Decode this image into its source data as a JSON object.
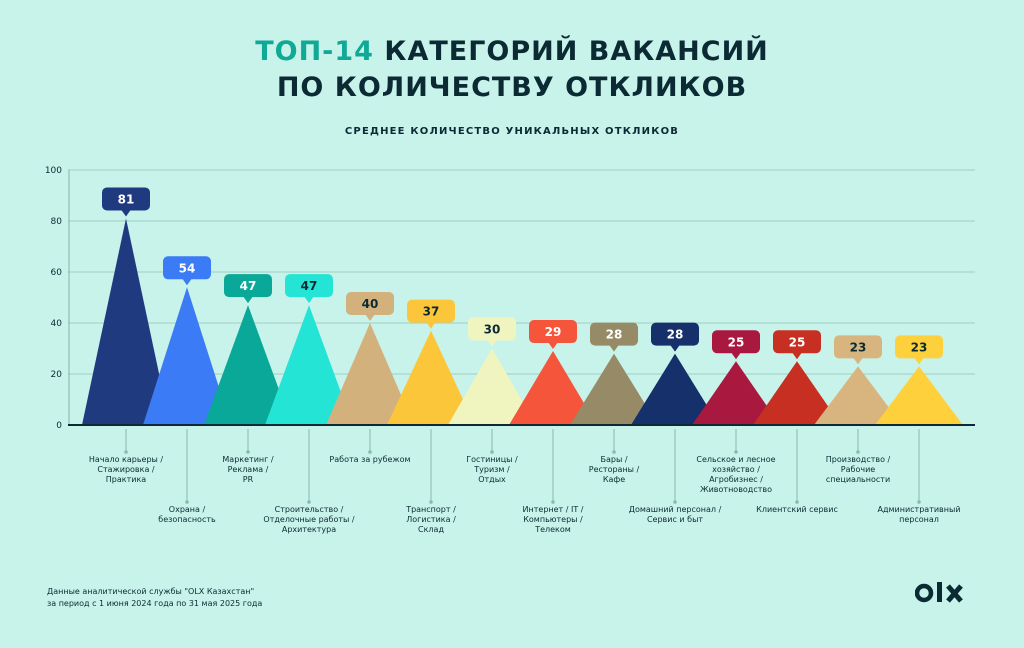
{
  "header": {
    "title_accent": "ТОП-14",
    "title_line1_rest": " КАТЕГОРИЙ ВАКАНСИЙ",
    "title_line2": "ПО КОЛИЧЕСТВУ ОТКЛИКОВ",
    "subtitle": "СРЕДНЕЕ КОЛИЧЕСТВО УНИКАЛЬНЫХ ОТКЛИКОВ"
  },
  "chart_data": {
    "type": "bar",
    "ylim": [
      0,
      100
    ],
    "yticks": [
      0,
      20,
      40,
      60,
      80,
      100
    ],
    "grid": true,
    "categories": [
      [
        "Начало карьеры /",
        "Стажировка /",
        "Практика"
      ],
      [
        "Охрана /",
        "безопасность"
      ],
      [
        "Маркетинг /",
        "Реклама /",
        "PR"
      ],
      [
        "Строительство /",
        "Отделочные работы /",
        "Архитектура"
      ],
      [
        "Работа за рубежом"
      ],
      [
        "Транспорт /",
        "Логистика /",
        "Склад"
      ],
      [
        "Гостиницы /",
        "Туризм /",
        "Отдых"
      ],
      [
        "Интернет / IT /",
        "Компьютеры /",
        "Телеком"
      ],
      [
        "Бары /",
        "Рестораны /",
        "Кафе"
      ],
      [
        "Домашний персонал /",
        "Сервис и быт"
      ],
      [
        "Сельское и лесное",
        "хозяйство /",
        "Агробизнес /",
        "Животноводство"
      ],
      [
        "Клиентский сервис"
      ],
      [
        "Производство /",
        "Рабочие",
        "специальности"
      ],
      [
        "Административный",
        "персонал"
      ]
    ],
    "values": [
      81,
      54,
      47,
      47,
      40,
      37,
      30,
      29,
      28,
      28,
      25,
      25,
      23,
      23
    ],
    "colors": [
      "#1f3a7e",
      "#3b7bf5",
      "#0aa898",
      "#24e4d6",
      "#d2b17d",
      "#fcc63a",
      "#f0f5c0",
      "#f5553a",
      "#968a67",
      "#15306a",
      "#a9183e",
      "#c72f22",
      "#d8b57e",
      "#fdd03c"
    ],
    "label_colors": [
      "#1f3a7e",
      "#3b7bf5",
      "#0aa898",
      "#24e4d6",
      "#d2b17d",
      "#fcc63a",
      "#f0f5c0",
      "#f5553a",
      "#968a67",
      "#15306a",
      "#a9183e",
      "#c72f22",
      "#d8b57e",
      "#fdd03c"
    ]
  },
  "footnote": {
    "line1": "Данные аналитической службы \"OLX Казахстан\"",
    "line2": "за период с 1 июня 2024 года по 31 мая 2025 года"
  },
  "logo": {
    "text": "OLX",
    "icon": "olx-logo-icon"
  }
}
